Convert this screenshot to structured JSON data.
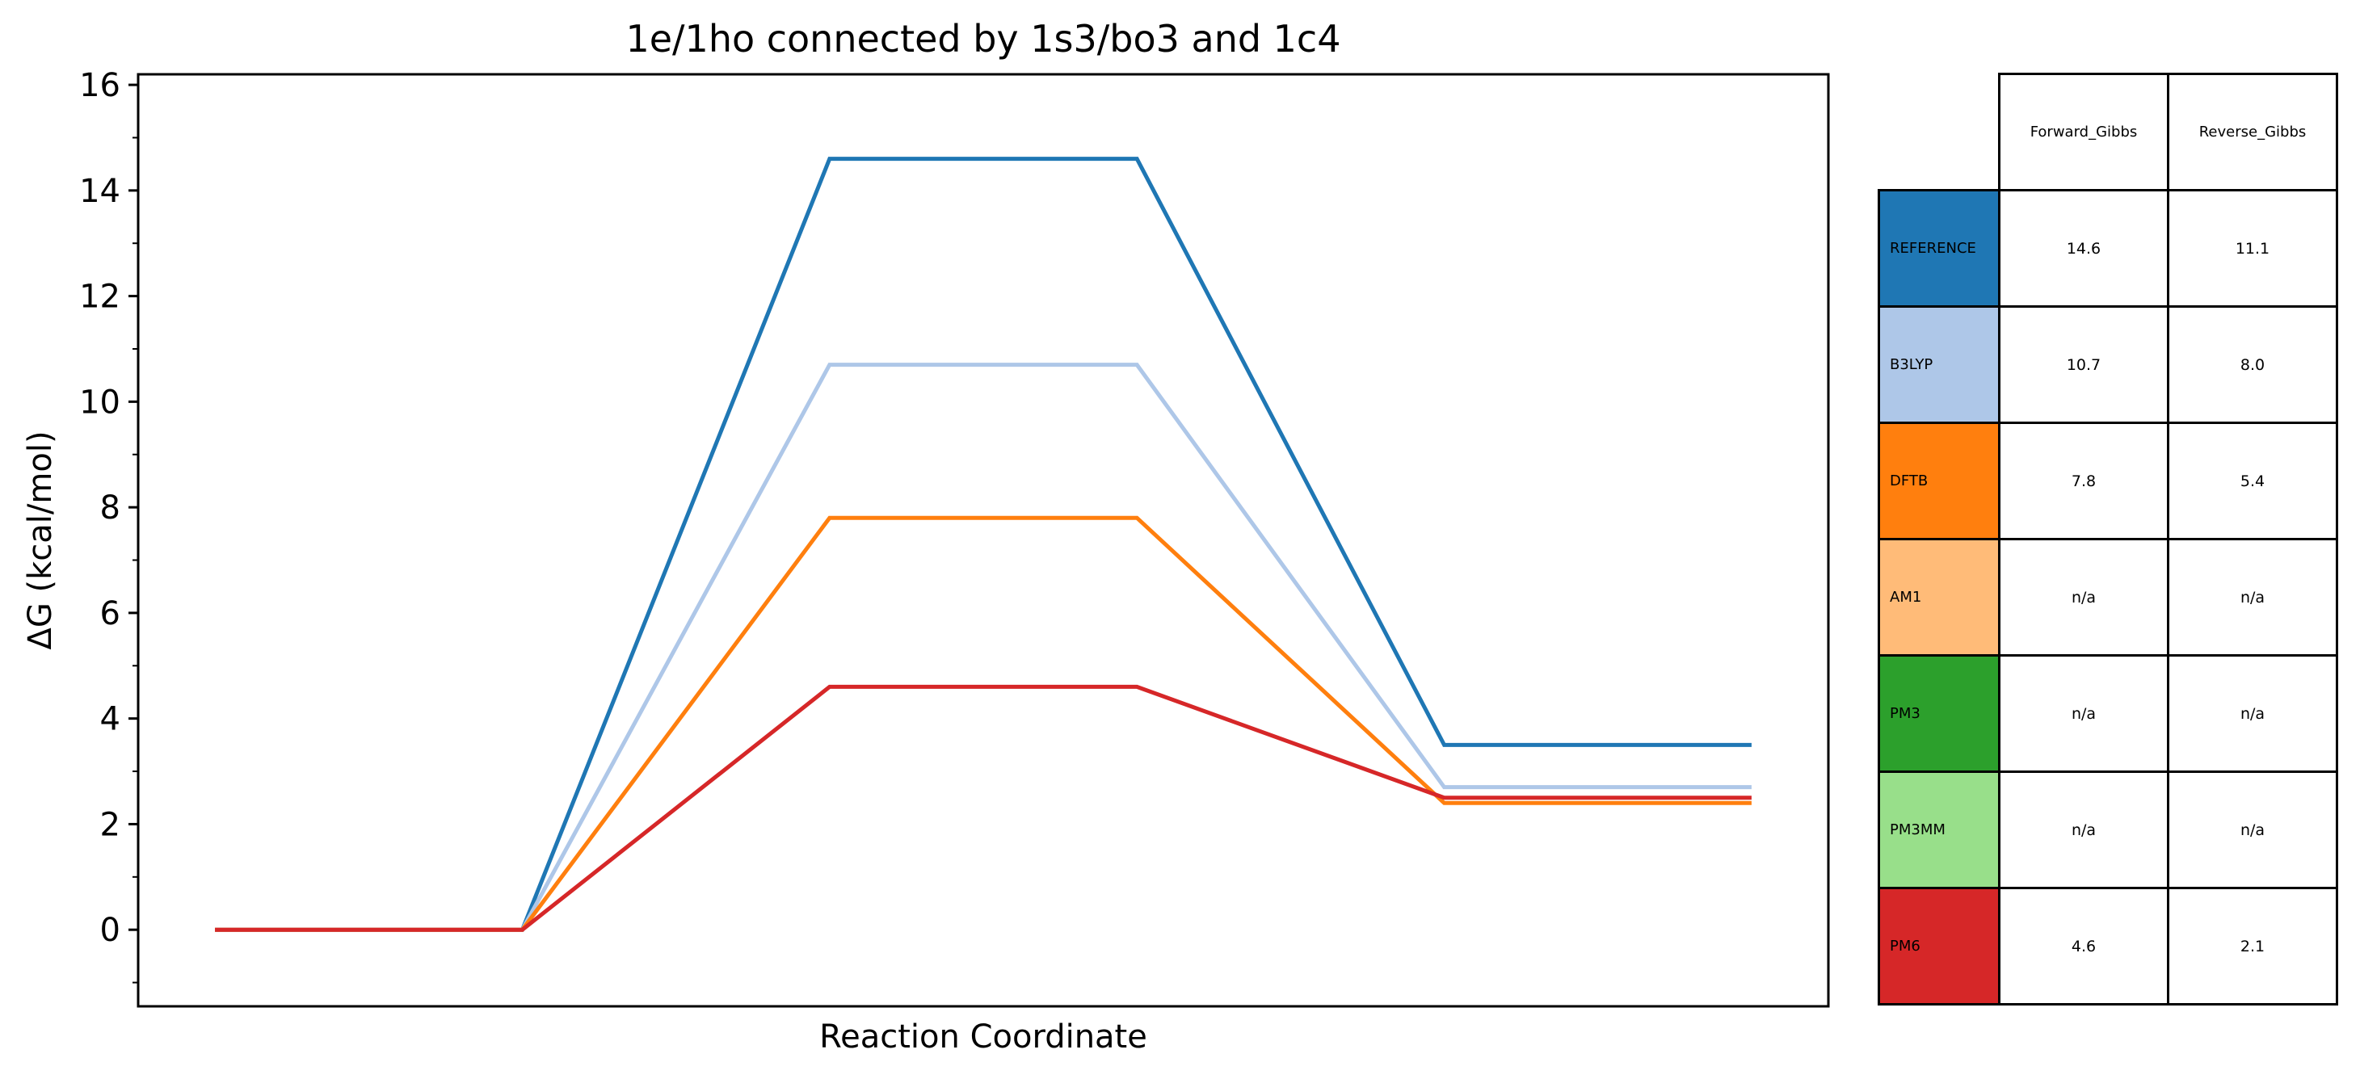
{
  "chart_data": {
    "type": "line",
    "title": "1e/1ho connected by 1s3/bo3 and 1c4",
    "xlabel": "Reaction Coordinate",
    "ylabel": "ΔG (kcal/mol)",
    "ylim": [
      -1.45,
      16.2
    ],
    "yticks": [
      0,
      2,
      4,
      6,
      8,
      10,
      12,
      14,
      16
    ],
    "grid": false,
    "x": [
      0,
      1,
      2,
      3,
      4,
      5
    ],
    "series": [
      {
        "name": "REFERENCE",
        "color": "#1f77b4",
        "values": [
          0,
          0,
          14.6,
          14.6,
          3.5,
          3.5
        ]
      },
      {
        "name": "B3LYP",
        "color": "#aec7e8",
        "values": [
          0,
          0,
          10.7,
          10.7,
          2.7,
          2.7
        ]
      },
      {
        "name": "DFTB",
        "color": "#ff7f0e",
        "values": [
          0,
          0,
          7.8,
          7.8,
          2.4,
          2.4
        ]
      },
      {
        "name": "PM6",
        "color": "#d62728",
        "values": [
          0,
          0,
          4.6,
          4.6,
          2.5,
          2.5
        ]
      }
    ]
  },
  "table": {
    "columns": [
      "Forward_Gibbs",
      "Reverse_Gibbs"
    ],
    "rows": [
      {
        "label": "REFERENCE",
        "color": "#1f77b4",
        "forward": "14.6",
        "reverse": "11.1"
      },
      {
        "label": "B3LYP",
        "color": "#aec7e8",
        "forward": "10.7",
        "reverse": "8.0"
      },
      {
        "label": "DFTB",
        "color": "#ff7f0e",
        "forward": "7.8",
        "reverse": "5.4"
      },
      {
        "label": "AM1",
        "color": "#ffbb78",
        "forward": "n/a",
        "reverse": "n/a"
      },
      {
        "label": "PM3",
        "color": "#2ca02c",
        "forward": "n/a",
        "reverse": "n/a"
      },
      {
        "label": "PM3MM",
        "color": "#98df8a",
        "forward": "n/a",
        "reverse": "n/a"
      },
      {
        "label": "PM6",
        "color": "#d62728",
        "forward": "4.6",
        "reverse": "2.1"
      }
    ]
  }
}
